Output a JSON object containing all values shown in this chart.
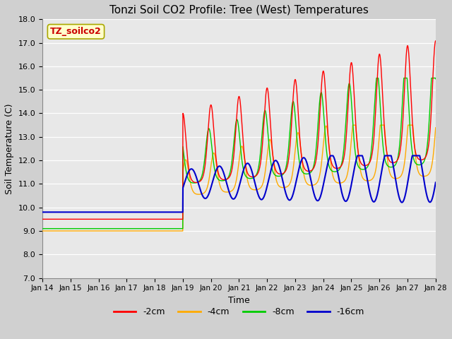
{
  "title": "Tonzi Soil CO2 Profile: Tree (West) Temperatures",
  "xlabel": "Time",
  "ylabel": "Soil Temperature (C)",
  "ylim": [
    7.0,
    18.0
  ],
  "yticks": [
    7.0,
    8.0,
    9.0,
    10.0,
    11.0,
    12.0,
    13.0,
    14.0,
    15.0,
    16.0,
    17.0,
    18.0
  ],
  "legend_label": "TZ_soilco2",
  "series_labels": [
    "-2cm",
    "-4cm",
    "-8cm",
    "-16cm"
  ],
  "series_colors": [
    "#ff0000",
    "#ffaa00",
    "#00cc00",
    "#0000cc"
  ],
  "facecolor": "#e8e8e8",
  "flat_vals": [
    9.5,
    9.0,
    9.1,
    9.8
  ],
  "flat_end_hour": 120,
  "time_end_hour": 336,
  "x_tick_labels": [
    "Jan 14",
    "Jan 15",
    "Jan 16",
    "Jan 17",
    "Jan 18",
    "Jan 19",
    "Jan 20",
    "Jan 21",
    "Jan 22",
    "Jan 23",
    "Jan 24",
    "Jan 25",
    "Jan 26",
    "Jan 27",
    "Jan 28"
  ],
  "x_tick_positions": [
    0,
    24,
    48,
    72,
    96,
    120,
    144,
    168,
    192,
    216,
    240,
    264,
    288,
    312,
    336
  ]
}
